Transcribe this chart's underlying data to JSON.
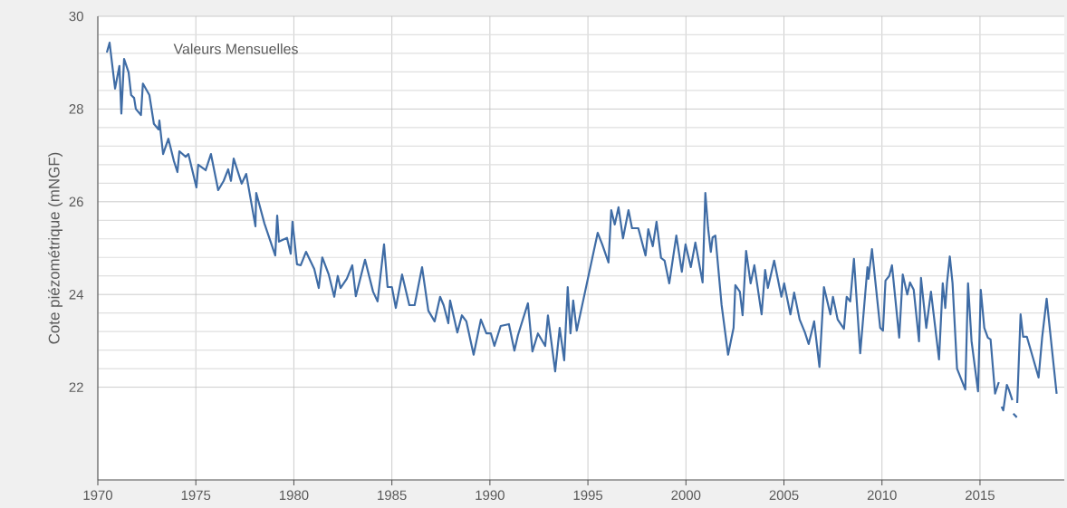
{
  "chart_data": {
    "type": "line",
    "ylabel": "Cote piézométrique (mNGF)",
    "annotations": [
      "Valeurs Mensuelles"
    ],
    "xlim": [
      1970,
      2019.3
    ],
    "xticks": [
      1970,
      1975,
      1980,
      1985,
      1990,
      1995,
      2000,
      2005,
      2010,
      2015
    ],
    "ylim": [
      20,
      30
    ],
    "yticks": [
      22,
      24,
      26,
      28,
      30
    ],
    "grid": true,
    "marker": "none",
    "line_style": "solid",
    "series": [
      {
        "color": "#3f6ca5",
        "x": [
          1970.46,
          1970.6,
          1970.88,
          1971.1,
          1971.2,
          1971.34,
          1971.57,
          1971.7,
          1971.85,
          1971.94,
          1972.2,
          1972.3,
          1972.63,
          1972.86,
          1973.1,
          1973.14,
          1973.33,
          1973.6,
          1973.88,
          1974.06,
          1974.16,
          1974.48,
          1974.62,
          1975.03,
          1975.12,
          1975.5,
          1975.77,
          1976.14,
          1976.42,
          1976.65,
          1976.79,
          1976.93,
          1977.34,
          1977.57,
          1978.04,
          1978.08,
          1978.5,
          1979.05,
          1979.15,
          1979.24,
          1979.65,
          1979.84,
          1979.93,
          1980.16,
          1980.35,
          1980.62,
          1981.04,
          1981.27,
          1981.45,
          1981.78,
          1982.06,
          1982.24,
          1982.38,
          1982.7,
          1982.98,
          1983.16,
          1983.63,
          1984.04,
          1984.27,
          1984.6,
          1984.78,
          1985.0,
          1985.2,
          1985.52,
          1985.89,
          1986.16,
          1986.54,
          1986.86,
          1987.18,
          1987.46,
          1987.64,
          1987.88,
          1987.97,
          1988.34,
          1988.57,
          1988.8,
          1989.17,
          1989.54,
          1989.82,
          1990.05,
          1990.23,
          1990.55,
          1990.97,
          1991.25,
          1991.43,
          1991.94,
          1992.17,
          1992.45,
          1992.82,
          1992.96,
          1993.33,
          1993.56,
          1993.79,
          1993.97,
          1994.11,
          1994.25,
          1994.43,
          1995.5,
          1995.73,
          1996.05,
          1996.19,
          1996.37,
          1996.56,
          1996.79,
          1997.07,
          1997.25,
          1997.57,
          1997.94,
          1998.08,
          1998.31,
          1998.5,
          1998.73,
          1998.91,
          1999.15,
          1999.51,
          1999.79,
          1999.98,
          2000.25,
          2000.48,
          2000.85,
          2000.99,
          2001.13,
          2001.27,
          2001.36,
          2001.5,
          2001.82,
          2002.15,
          2002.43,
          2002.52,
          2002.75,
          2002.89,
          2003.07,
          2003.3,
          2003.49,
          2003.86,
          2004.04,
          2004.18,
          2004.5,
          2004.87,
          2005.01,
          2005.33,
          2005.52,
          2005.8,
          2006.07,
          2006.26,
          2006.54,
          2006.81,
          2007.04,
          2007.37,
          2007.5,
          2007.74,
          2008.06,
          2008.2,
          2008.38,
          2008.57,
          2008.89,
          2009.26,
          2009.31,
          2009.49,
          2009.91,
          2010.05,
          2010.18,
          2010.37,
          2010.51,
          2010.88,
          2011.06,
          2011.29,
          2011.43,
          2011.62,
          2011.89,
          2011.99,
          2012.26,
          2012.5,
          2012.91,
          2013.1,
          2013.23,
          2013.32,
          2013.46,
          2013.6,
          2013.83,
          2014.25,
          2014.39,
          2014.57,
          2014.9,
          2015.04,
          2015.22,
          2015.4,
          2015.54,
          2015.77,
          2015.96,
          2016.03,
          2016.1,
          2016.19,
          2016.37,
          2016.47,
          2016.65,
          2016.68,
          2016.7,
          2016.88,
          2016.89,
          2016.9,
          2017.07,
          2017.2,
          2017.39,
          2017.67,
          2017.99,
          2018.17,
          2018.4,
          2018.91
        ],
        "values": [
          29.22,
          29.43,
          28.44,
          28.93,
          27.9,
          29.08,
          28.79,
          28.3,
          28.24,
          28.0,
          27.87,
          28.55,
          28.3,
          27.68,
          27.56,
          27.75,
          27.03,
          27.36,
          26.88,
          26.64,
          27.09,
          26.97,
          27.03,
          26.31,
          26.8,
          26.68,
          27.03,
          26.25,
          26.45,
          26.7,
          26.45,
          26.93,
          26.39,
          26.6,
          25.47,
          26.19,
          25.53,
          24.84,
          25.7,
          25.14,
          25.22,
          24.88,
          25.57,
          24.65,
          24.63,
          24.92,
          24.55,
          24.14,
          24.8,
          24.43,
          23.95,
          24.4,
          24.14,
          24.34,
          24.63,
          23.96,
          24.75,
          24.06,
          23.85,
          25.08,
          24.16,
          24.16,
          23.71,
          24.43,
          23.77,
          23.77,
          24.59,
          23.65,
          23.42,
          23.95,
          23.77,
          23.38,
          23.87,
          23.18,
          23.55,
          23.42,
          22.7,
          23.46,
          23.16,
          23.16,
          22.89,
          23.32,
          23.36,
          22.79,
          23.12,
          23.81,
          22.77,
          23.16,
          22.89,
          23.55,
          22.34,
          23.28,
          22.58,
          24.16,
          23.16,
          23.87,
          23.22,
          25.33,
          25.08,
          24.69,
          25.82,
          25.51,
          25.88,
          25.21,
          25.82,
          25.43,
          25.43,
          24.84,
          25.41,
          25.04,
          25.57,
          24.79,
          24.73,
          24.24,
          25.27,
          24.49,
          25.08,
          24.59,
          25.12,
          24.26,
          26.19,
          25.43,
          24.92,
          25.23,
          25.27,
          23.77,
          22.7,
          23.28,
          24.2,
          24.06,
          23.55,
          24.94,
          24.24,
          24.63,
          23.57,
          24.53,
          24.14,
          24.73,
          23.95,
          24.24,
          23.57,
          24.04,
          23.46,
          23.18,
          22.93,
          23.42,
          22.44,
          24.16,
          23.57,
          23.95,
          23.46,
          23.26,
          23.95,
          23.85,
          24.77,
          22.73,
          24.59,
          24.34,
          24.98,
          23.28,
          23.22,
          24.3,
          24.4,
          24.63,
          23.07,
          24.43,
          24.0,
          24.26,
          24.1,
          22.99,
          24.36,
          23.28,
          24.06,
          22.6,
          24.24,
          23.71,
          24.26,
          24.82,
          24.24,
          22.4,
          21.95,
          24.24,
          22.99,
          21.91,
          24.1,
          23.28,
          23.07,
          23.03,
          21.86,
          22.11,
          null,
          21.58,
          21.5,
          22.05,
          21.95,
          21.72,
          null,
          21.43,
          21.35,
          null,
          21.66,
          23.57,
          23.09,
          23.09,
          22.68,
          22.21,
          23.07,
          23.91,
          21.86
        ]
      }
    ]
  }
}
